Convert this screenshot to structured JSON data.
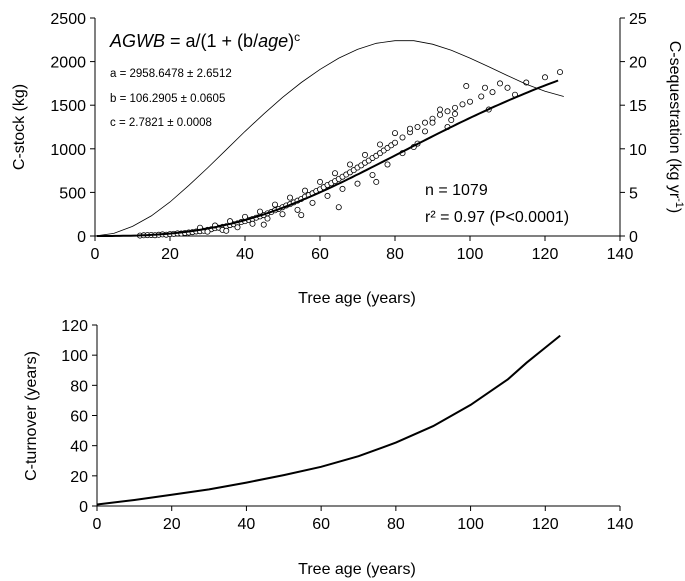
{
  "chart_data": [
    {
      "type": "scatter",
      "equation": {
        "lhs": "AGWB",
        "op": " = a/(1 + (b/",
        "var": "age",
        "close": ")",
        "exp": "c"
      },
      "params": [
        "a = 2958.6478 ± 2.6512",
        "b = 106.2905 ± 0.0605",
        "c = 2.7821 ± 0.0008"
      ],
      "stats": {
        "n": "n = 1079",
        "r2": "r² = 0.97 (P<0.0001)"
      },
      "xlabel": "Tree age (years)",
      "ylabel": "C-stock (kg)",
      "y2label": "C-sequestration (kg yr",
      "y2label_sup": "-1",
      "y2label_close": ")",
      "xlim": [
        0,
        140
      ],
      "ylim": [
        0,
        2500
      ],
      "y2lim": [
        0,
        25
      ],
      "xticks": [
        0,
        20,
        40,
        60,
        80,
        100,
        120,
        140
      ],
      "yticks": [
        0,
        500,
        1000,
        1500,
        2000,
        2500
      ],
      "y2ticks": [
        0,
        5,
        10,
        15,
        20,
        25
      ],
      "fit": {
        "a": 2958.6478,
        "b": 106.2905,
        "c": 2.7821
      },
      "sequestration_curve": {
        "x": [
          0,
          5,
          10,
          15,
          20,
          25,
          30,
          35,
          40,
          45,
          50,
          55,
          60,
          65,
          70,
          75,
          80,
          85,
          90,
          95,
          100,
          105,
          110,
          115,
          120,
          125
        ],
        "y": [
          0,
          0.3,
          1.1,
          2.3,
          3.9,
          5.8,
          7.8,
          9.9,
          12.0,
          14.0,
          15.9,
          17.6,
          19.1,
          20.4,
          21.4,
          22.1,
          22.4,
          22.4,
          22.0,
          21.3,
          20.4,
          19.4,
          18.4,
          17.4,
          16.6,
          16.0
        ]
      },
      "scatter_points": [
        [
          12,
          5
        ],
        [
          13,
          8
        ],
        [
          14,
          10
        ],
        [
          15,
          12
        ],
        [
          16,
          9
        ],
        [
          17,
          14
        ],
        [
          18,
          18
        ],
        [
          19,
          15
        ],
        [
          20,
          22
        ],
        [
          21,
          25
        ],
        [
          22,
          30
        ],
        [
          23,
          28
        ],
        [
          24,
          35
        ],
        [
          25,
          40
        ],
        [
          26,
          45
        ],
        [
          27,
          52
        ],
        [
          28,
          55
        ],
        [
          29,
          60
        ],
        [
          30,
          70
        ],
        [
          31,
          78
        ],
        [
          32,
          90
        ],
        [
          33,
          95
        ],
        [
          34,
          105
        ],
        [
          35,
          112
        ],
        [
          36,
          125
        ],
        [
          37,
          135
        ],
        [
          38,
          145
        ],
        [
          39,
          160
        ],
        [
          40,
          170
        ],
        [
          41,
          185
        ],
        [
          42,
          195
        ],
        [
          43,
          210
        ],
        [
          44,
          225
        ],
        [
          45,
          240
        ],
        [
          46,
          260
        ],
        [
          47,
          275
        ],
        [
          48,
          295
        ],
        [
          49,
          310
        ],
        [
          50,
          330
        ],
        [
          51,
          350
        ],
        [
          52,
          365
        ],
        [
          53,
          385
        ],
        [
          54,
          405
        ],
        [
          55,
          425
        ],
        [
          56,
          450
        ],
        [
          57,
          470
        ],
        [
          58,
          490
        ],
        [
          59,
          515
        ],
        [
          60,
          535
        ],
        [
          61,
          560
        ],
        [
          62,
          585
        ],
        [
          63,
          605
        ],
        [
          64,
          630
        ],
        [
          65,
          655
        ],
        [
          66,
          680
        ],
        [
          67,
          705
        ],
        [
          68,
          730
        ],
        [
          69,
          755
        ],
        [
          70,
          785
        ],
        [
          71,
          810
        ],
        [
          72,
          840
        ],
        [
          73,
          865
        ],
        [
          74,
          895
        ],
        [
          75,
          920
        ],
        [
          76,
          950
        ],
        [
          77,
          980
        ],
        [
          78,
          1010
        ],
        [
          79,
          1040
        ],
        [
          80,
          1070
        ],
        [
          82,
          1130
        ],
        [
          84,
          1190
        ],
        [
          86,
          1250
        ],
        [
          88,
          1300
        ],
        [
          90,
          1345
        ],
        [
          92,
          1390
        ],
        [
          94,
          1430
        ],
        [
          96,
          1470
        ],
        [
          98,
          1510
        ],
        [
          100,
          1540
        ],
        [
          103,
          1600
        ],
        [
          106,
          1650
        ],
        [
          110,
          1700
        ],
        [
          115,
          1760
        ],
        [
          120,
          1820
        ],
        [
          28,
          95
        ],
        [
          30,
          50
        ],
        [
          32,
          120
        ],
        [
          34,
          70
        ],
        [
          36,
          170
        ],
        [
          38,
          100
        ],
        [
          40,
          220
        ],
        [
          42,
          140
        ],
        [
          44,
          280
        ],
        [
          46,
          200
        ],
        [
          48,
          360
        ],
        [
          50,
          250
        ],
        [
          52,
          440
        ],
        [
          54,
          300
        ],
        [
          56,
          520
        ],
        [
          58,
          380
        ],
        [
          60,
          620
        ],
        [
          62,
          460
        ],
        [
          64,
          720
        ],
        [
          66,
          540
        ],
        [
          68,
          820
        ],
        [
          70,
          600
        ],
        [
          72,
          930
        ],
        [
          74,
          700
        ],
        [
          76,
          1050
        ],
        [
          78,
          820
        ],
        [
          80,
          1180
        ],
        [
          82,
          950
        ],
        [
          84,
          1230
        ],
        [
          86,
          1060
        ],
        [
          88,
          1200
        ],
        [
          90,
          1300
        ],
        [
          92,
          1450
        ],
        [
          94,
          1250
        ],
        [
          96,
          1400
        ],
        [
          99,
          1720
        ],
        [
          104,
          1700
        ],
        [
          108,
          1750
        ],
        [
          112,
          1620
        ],
        [
          124,
          1880
        ],
        [
          35,
          60
        ],
        [
          45,
          130
        ],
        [
          55,
          240
        ],
        [
          65,
          330
        ],
        [
          75,
          620
        ],
        [
          85,
          1020
        ],
        [
          95,
          1330
        ],
        [
          105,
          1450
        ]
      ]
    },
    {
      "type": "line",
      "xlabel": "Tree age (years)",
      "ylabel": "C-turnover (years)",
      "xlim": [
        0,
        140
      ],
      "ylim": [
        0,
        120
      ],
      "xticks": [
        0,
        20,
        40,
        60,
        80,
        100,
        120,
        140
      ],
      "yticks": [
        0,
        20,
        40,
        60,
        80,
        100,
        120
      ],
      "series": [
        {
          "x": [
            0,
            10,
            20,
            30,
            40,
            50,
            60,
            70,
            80,
            90,
            100,
            110,
            115,
            120,
            124
          ],
          "values": [
            1,
            4,
            7.5,
            11,
            15.5,
            20.5,
            26,
            33,
            42,
            53,
            67,
            84,
            95,
            105,
            113
          ]
        }
      ]
    }
  ]
}
